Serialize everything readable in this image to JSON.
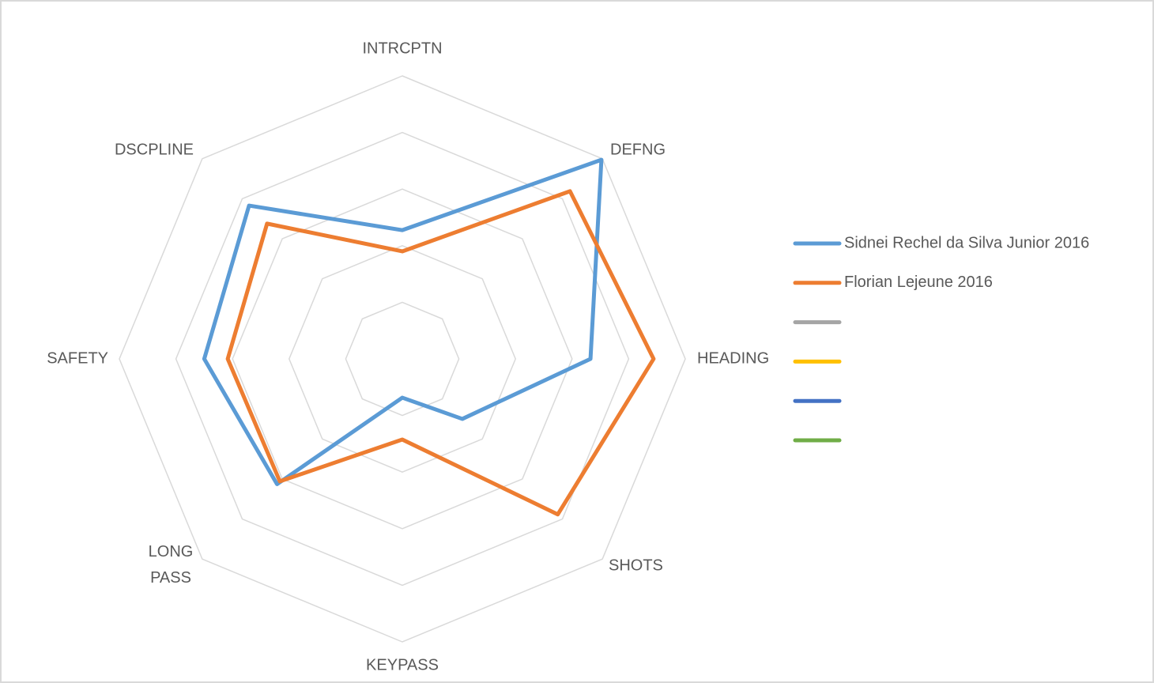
{
  "chart_data": {
    "type": "radar",
    "categories": [
      "INTRCPTN",
      "DEFNG",
      "HEADING",
      "SHOTS",
      "KEYPASS",
      "LONG PASS",
      "SAFETY",
      "DSCPLINE"
    ],
    "series": [
      {
        "name": "Sidnei Rechel da Silva Junior 2016",
        "color": "#5b9bd5",
        "values": [
          45.5,
          99.5,
          66.5,
          30,
          13.7,
          62.6,
          70,
          76.6
        ]
      },
      {
        "name": "Florian Lejeune 2016",
        "color": "#ed7d31",
        "values": [
          38,
          83.8,
          88.8,
          77.7,
          28.5,
          61.2,
          61.7,
          67.6
        ]
      },
      {
        "color": "#a5a5a5",
        "values": [
          null,
          null,
          null,
          null,
          null,
          null,
          null,
          null
        ]
      },
      {
        "color": "#ffc000",
        "values": [
          null,
          null,
          null,
          null,
          null,
          null,
          null,
          null
        ]
      },
      {
        "color": "#4472c4",
        "values": [
          null,
          null,
          null,
          null,
          null,
          null,
          null,
          null
        ]
      },
      {
        "color": "#70ad47",
        "values": [
          null,
          null,
          null,
          null,
          null,
          null,
          null,
          null
        ]
      }
    ],
    "ylim": [
      0,
      100
    ],
    "yticks": [
      0,
      20,
      40,
      60,
      80,
      100
    ],
    "grid": true,
    "legend": "right"
  }
}
